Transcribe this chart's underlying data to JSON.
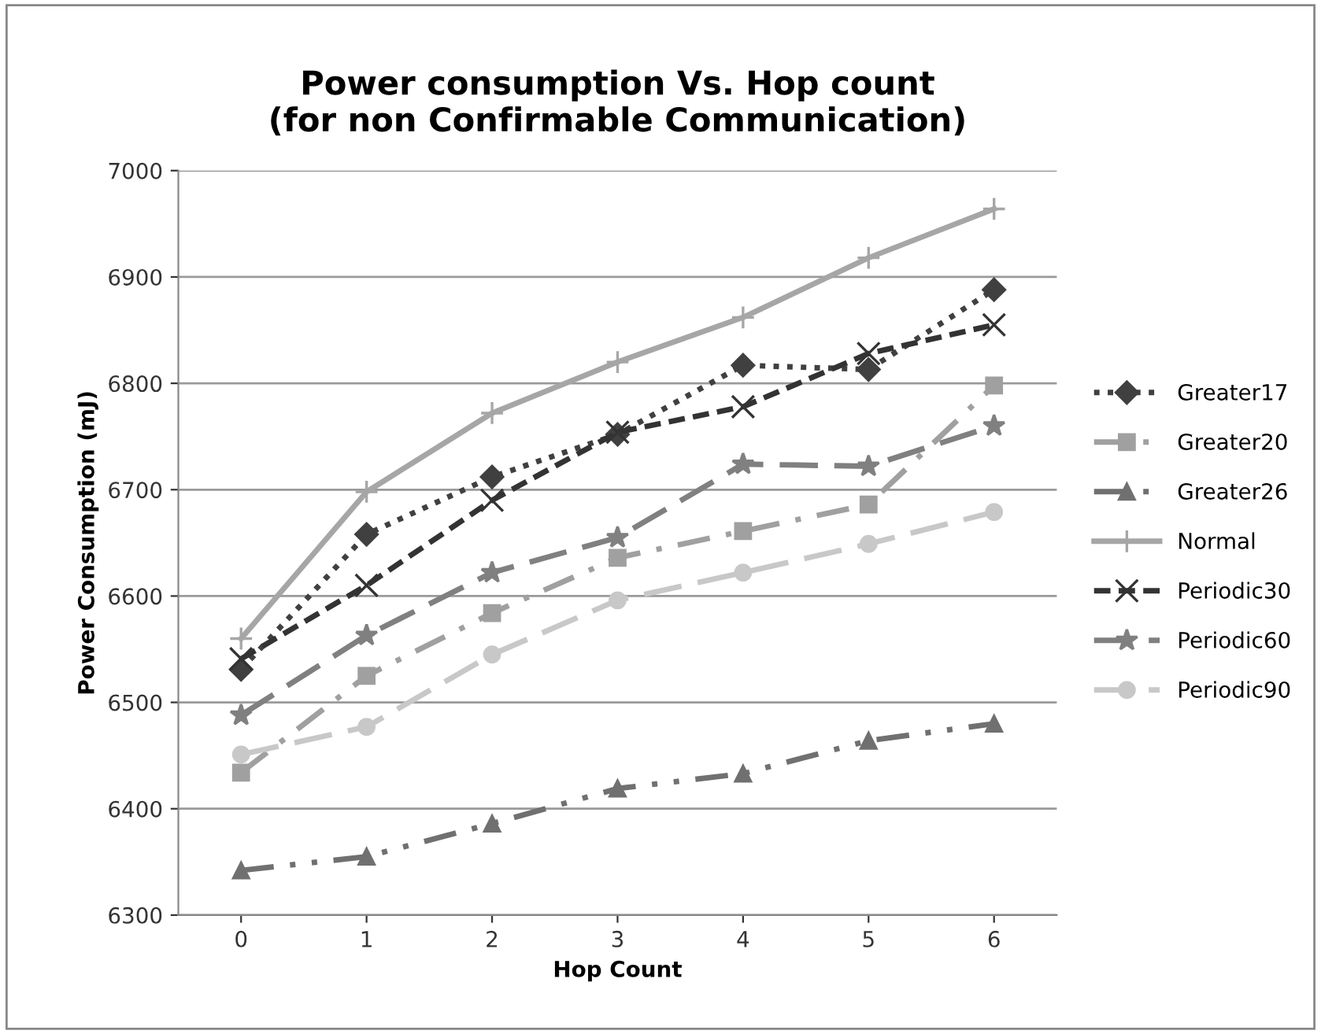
{
  "chart_data": {
    "type": "line",
    "title": "Power consumption Vs. Hop count\n(for non Confirmable Communication)",
    "xlabel": "Hop Count",
    "ylabel": "Power Consumption (mJ)",
    "categories": [
      "0",
      "1",
      "2",
      "3",
      "4",
      "5",
      "6"
    ],
    "ylim": [
      6300,
      7000
    ],
    "yticks": [
      6300,
      6400,
      6500,
      6600,
      6700,
      6800,
      6900,
      7000
    ],
    "grid": "y",
    "legend": "right",
    "series": [
      {
        "name": "Greater17",
        "color": "#404040",
        "marker": "diamond",
        "line_style": "dotted",
        "values": [
          6531,
          6658,
          6712,
          6752,
          6817,
          6813,
          6888
        ]
      },
      {
        "name": "Greater20",
        "color": "#a0a0a0",
        "marker": "square",
        "line_style": "dashdot",
        "values": [
          6434,
          6525,
          6584,
          6636,
          6661,
          6686,
          6798
        ]
      },
      {
        "name": "Greater26",
        "color": "#707070",
        "marker": "triangle",
        "line_style": "dashdotdot",
        "values": [
          6342,
          6355,
          6386,
          6419,
          6433,
          6464,
          6480
        ]
      },
      {
        "name": "Normal",
        "color": "#a6a6a6",
        "marker": "plus",
        "line_style": "solid",
        "values": [
          6560,
          6698,
          6772,
          6820,
          6862,
          6918,
          6964
        ]
      },
      {
        "name": "Periodic30",
        "color": "#333333",
        "marker": "cross",
        "line_style": "dashed",
        "values": [
          6541,
          6610,
          6690,
          6754,
          6778,
          6828,
          6855
        ]
      },
      {
        "name": "Periodic60",
        "color": "#808080",
        "marker": "star",
        "line_style": "longdash",
        "values": [
          6488,
          6563,
          6622,
          6655,
          6724,
          6722,
          6760
        ]
      },
      {
        "name": "Periodic90",
        "color": "#c8c8c8",
        "marker": "circle",
        "line_style": "longdash",
        "values": [
          6451,
          6477,
          6545,
          6596,
          6622,
          6649,
          6679
        ]
      }
    ]
  }
}
